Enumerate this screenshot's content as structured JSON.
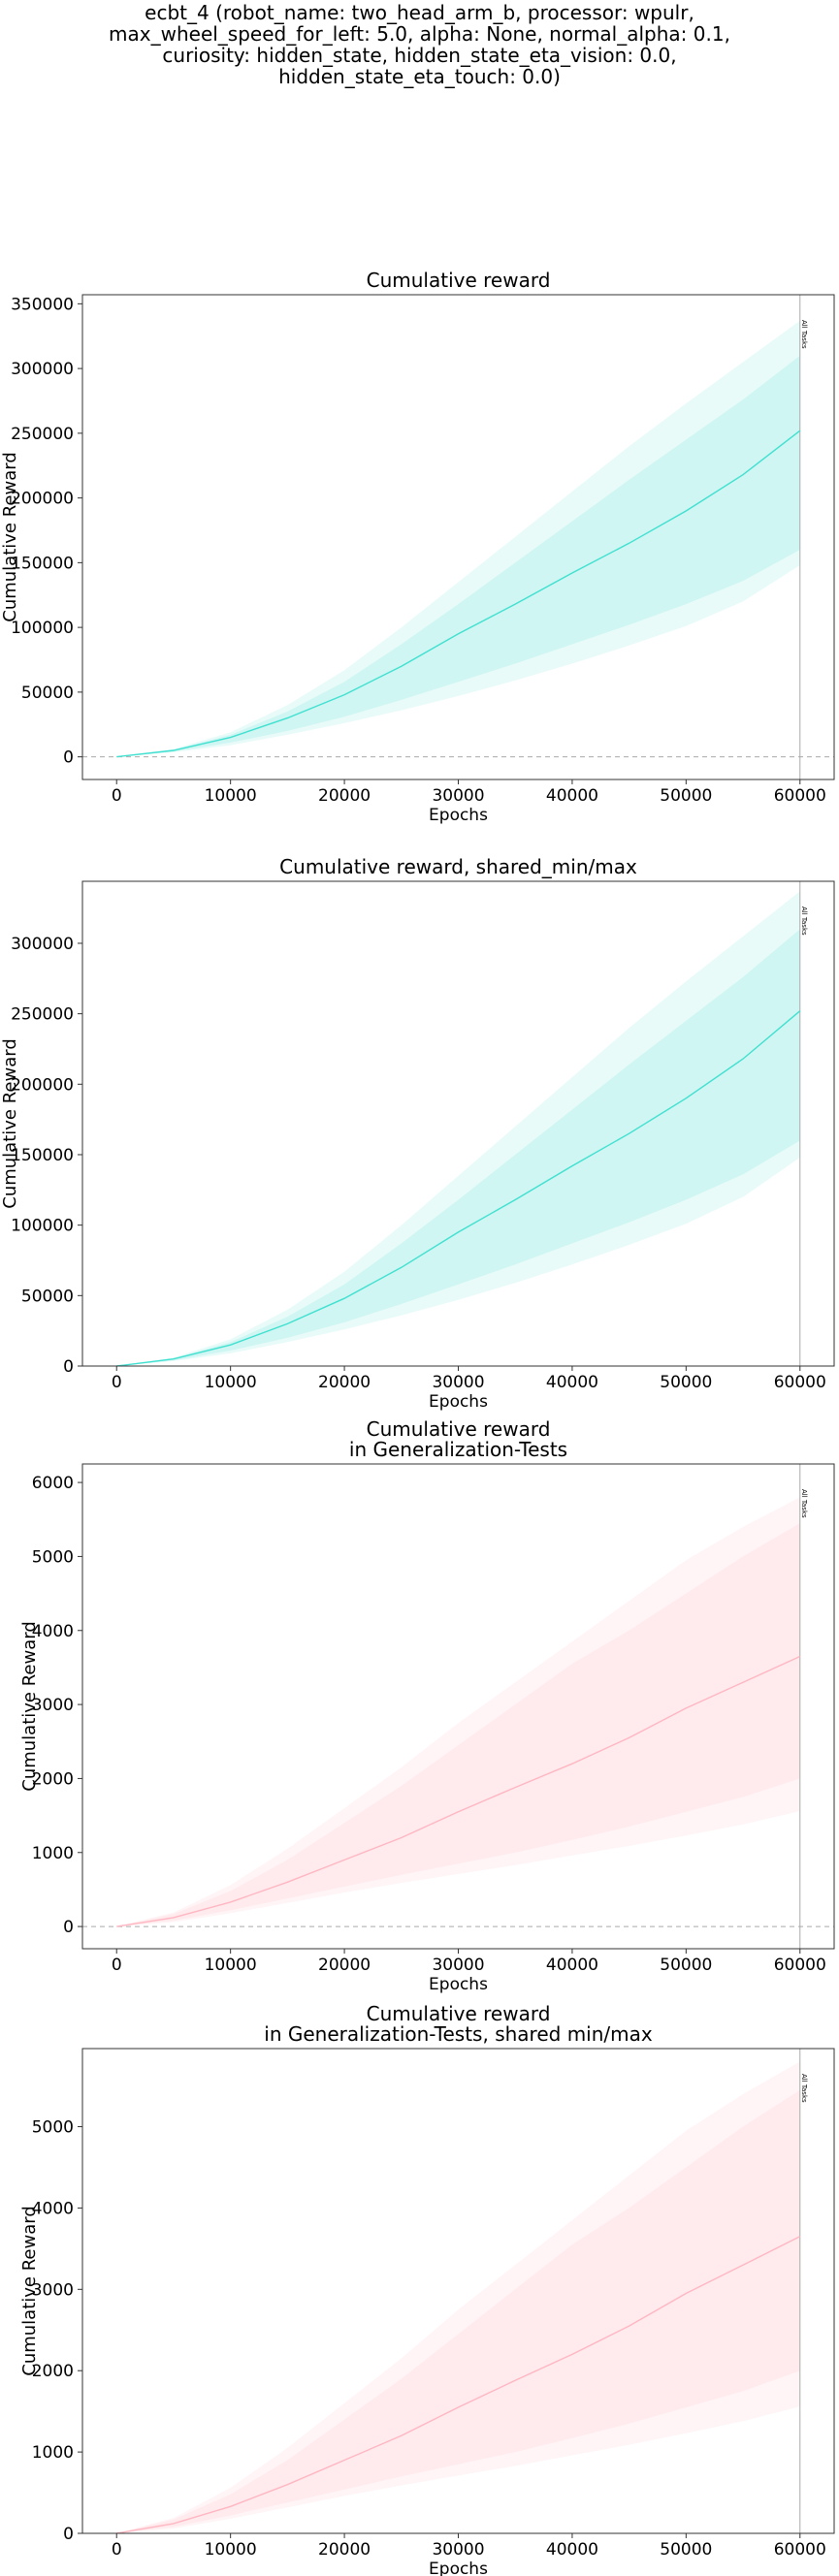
{
  "suptitle": [
    "ecbt_4 (robot_name: two_head_arm_b, processor: wpulr,",
    "max_wheel_speed_for_left: 5.0, alpha: None, normal_alpha: 0.1,",
    "curiosity: hidden_state, hidden_state_eta_vision: 0.0,",
    "hidden_state_eta_touch: 0.0)"
  ],
  "colors": {
    "teal_line": "#40e0d0",
    "teal_band": "#40e0d0",
    "pink_line": "#ffb6c1",
    "pink_band": "#ffc0cb",
    "zero_line": "#aaaaaa",
    "vline": "#aaaaaa"
  },
  "chart_data": [
    {
      "type": "line",
      "title": [
        "Cumulative reward"
      ],
      "xlabel": "Epochs",
      "ylabel": "Cumulative Reward",
      "xlim": [
        -3000,
        63000
      ],
      "ylim": [
        -17500,
        357000
      ],
      "xticks": [
        0,
        10000,
        20000,
        30000,
        40000,
        50000,
        60000
      ],
      "yticks": [
        0,
        50000,
        100000,
        150000,
        200000,
        250000,
        300000,
        350000
      ],
      "zero_line": true,
      "vline": {
        "x": 60000,
        "label": "All Tasks"
      },
      "color": "teal",
      "x": [
        0,
        5000,
        10000,
        15000,
        20000,
        25000,
        30000,
        35000,
        40000,
        45000,
        50000,
        55000,
        60000
      ],
      "mean": [
        0,
        5000,
        15000,
        30000,
        48000,
        70000,
        95000,
        118000,
        142000,
        165000,
        190000,
        218000,
        252000
      ],
      "inner_low": [
        0,
        4000,
        11000,
        20000,
        31000,
        44000,
        58000,
        72000,
        87000,
        102000,
        118000,
        136000,
        160000
      ],
      "inner_high": [
        0,
        5500,
        17000,
        35000,
        58000,
        87000,
        118000,
        150000,
        182000,
        214000,
        245000,
        276000,
        310000
      ],
      "outer_low": [
        0,
        3500,
        9000,
        17000,
        26000,
        36000,
        47000,
        59000,
        72000,
        86000,
        101000,
        120000,
        148000
      ],
      "outer_high": [
        0,
        6000,
        19000,
        40000,
        67000,
        100000,
        135000,
        170000,
        205000,
        240000,
        273000,
        305000,
        337000
      ]
    },
    {
      "type": "line",
      "title": [
        "Cumulative reward, shared_min/max"
      ],
      "xlabel": "Epochs",
      "ylabel": "Cumulative Reward",
      "xlim": [
        -3000,
        63000
      ],
      "ylim": [
        0,
        344000
      ],
      "xticks": [
        0,
        10000,
        20000,
        30000,
        40000,
        50000,
        60000
      ],
      "yticks": [
        0,
        50000,
        100000,
        150000,
        200000,
        250000,
        300000
      ],
      "zero_line": false,
      "vline": {
        "x": 60000,
        "label": "All Tasks"
      },
      "color": "teal",
      "x": [
        0,
        5000,
        10000,
        15000,
        20000,
        25000,
        30000,
        35000,
        40000,
        45000,
        50000,
        55000,
        60000
      ],
      "mean": [
        0,
        5000,
        15000,
        30000,
        48000,
        70000,
        95000,
        118000,
        142000,
        165000,
        190000,
        218000,
        252000
      ],
      "inner_low": [
        0,
        4000,
        11000,
        20000,
        31000,
        44000,
        58000,
        72000,
        87000,
        102000,
        118000,
        136000,
        160000
      ],
      "inner_high": [
        0,
        5500,
        17000,
        35000,
        58000,
        87000,
        118000,
        150000,
        182000,
        214000,
        245000,
        276000,
        310000
      ],
      "outer_low": [
        0,
        3500,
        9000,
        17000,
        26000,
        36000,
        47000,
        59000,
        72000,
        86000,
        101000,
        120000,
        148000
      ],
      "outer_high": [
        0,
        6000,
        19000,
        40000,
        67000,
        100000,
        135000,
        170000,
        205000,
        240000,
        273000,
        305000,
        337000
      ]
    },
    {
      "type": "line",
      "title": [
        "Cumulative reward",
        "in Generalization-Tests"
      ],
      "xlabel": "Epochs",
      "ylabel": "Cumulative Reward",
      "xlim": [
        -3000,
        63000
      ],
      "ylim": [
        -300,
        6250
      ],
      "xticks": [
        0,
        10000,
        20000,
        30000,
        40000,
        50000,
        60000
      ],
      "yticks": [
        0,
        1000,
        2000,
        3000,
        4000,
        5000,
        6000
      ],
      "zero_line": true,
      "vline": {
        "x": 60000,
        "label": "All Tasks"
      },
      "color": "pink",
      "x": [
        0,
        5000,
        10000,
        15000,
        20000,
        25000,
        30000,
        35000,
        40000,
        45000,
        50000,
        55000,
        60000
      ],
      "mean": [
        0,
        120,
        330,
        600,
        900,
        1200,
        1550,
        1880,
        2200,
        2550,
        2950,
        3300,
        3650
      ],
      "inner_low": [
        0,
        80,
        220,
        380,
        540,
        700,
        850,
        1000,
        1170,
        1350,
        1550,
        1750,
        2000
      ],
      "inner_high": [
        0,
        170,
        480,
        900,
        1400,
        1900,
        2450,
        3000,
        3550,
        4000,
        4500,
        5000,
        5450
      ],
      "outer_low": [
        0,
        60,
        180,
        320,
        460,
        590,
        710,
        830,
        960,
        1090,
        1230,
        1380,
        1560
      ],
      "outer_high": [
        0,
        190,
        560,
        1050,
        1600,
        2150,
        2750,
        3300,
        3850,
        4400,
        4950,
        5400,
        5800
      ]
    },
    {
      "type": "line",
      "title": [
        "Cumulative reward",
        "in Generalization-Tests, shared min/max"
      ],
      "xlabel": "Epochs",
      "ylabel": "Cumulative Reward",
      "xlim": [
        -3000,
        63000
      ],
      "ylim": [
        0,
        5960
      ],
      "xticks": [
        0,
        10000,
        20000,
        30000,
        40000,
        50000,
        60000
      ],
      "yticks": [
        0,
        1000,
        2000,
        3000,
        4000,
        5000
      ],
      "zero_line": false,
      "vline": {
        "x": 60000,
        "label": "All Tasks"
      },
      "color": "pink",
      "x": [
        0,
        5000,
        10000,
        15000,
        20000,
        25000,
        30000,
        35000,
        40000,
        45000,
        50000,
        55000,
        60000
      ],
      "mean": [
        0,
        120,
        330,
        600,
        900,
        1200,
        1550,
        1880,
        2200,
        2550,
        2950,
        3300,
        3650
      ],
      "inner_low": [
        0,
        80,
        220,
        380,
        540,
        700,
        850,
        1000,
        1170,
        1350,
        1550,
        1750,
        2000
      ],
      "inner_high": [
        0,
        170,
        480,
        900,
        1400,
        1900,
        2450,
        3000,
        3550,
        4000,
        4500,
        5000,
        5450
      ],
      "outer_low": [
        0,
        60,
        180,
        320,
        460,
        590,
        710,
        830,
        960,
        1090,
        1230,
        1380,
        1560
      ],
      "outer_high": [
        0,
        190,
        560,
        1050,
        1600,
        2150,
        2750,
        3300,
        3850,
        4400,
        4950,
        5400,
        5800
      ]
    }
  ]
}
